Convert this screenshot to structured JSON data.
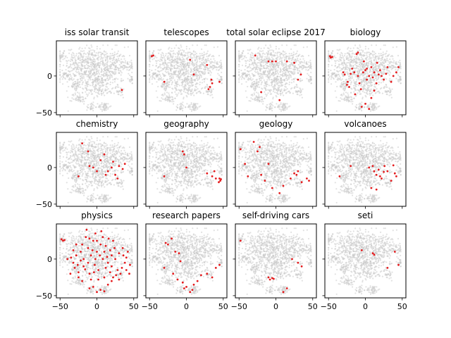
{
  "chart_data": {
    "type": "scatter",
    "layout": "3x4 grid of small multiples, shared x and y axes",
    "background_points_color": "#c8c8c8",
    "highlight_color": "#e41a1c",
    "xlim": [
      -55,
      55
    ],
    "ylim": [
      -53,
      48
    ],
    "xticks": [
      -50,
      0,
      50
    ],
    "yticks": [
      -50,
      0
    ],
    "grid": false,
    "background_clusters": [
      {
        "cx": -5,
        "cy": 8,
        "sx": 22,
        "sy": 16,
        "n": 520
      },
      {
        "cx": -18,
        "cy": 22,
        "sx": 10,
        "sy": 8,
        "n": 110
      },
      {
        "cx": 20,
        "cy": 12,
        "sx": 12,
        "sy": 10,
        "n": 130
      },
      {
        "cx": -47,
        "cy": 27,
        "sx": 3,
        "sy": 3,
        "n": 30
      },
      {
        "cx": -42,
        "cy": 0,
        "sx": 3,
        "sy": 3,
        "n": 25
      },
      {
        "cx": -30,
        "cy": -12,
        "sx": 4,
        "sy": 4,
        "n": 35
      },
      {
        "cx": -24,
        "cy": -30,
        "sx": 5,
        "sy": 4,
        "n": 45
      },
      {
        "cx": 10,
        "cy": -42,
        "sx": 4,
        "sy": 3,
        "n": 45
      },
      {
        "cx": -8,
        "cy": -42,
        "sx": 3,
        "sy": 3,
        "n": 25
      },
      {
        "cx": 30,
        "cy": -22,
        "sx": 4,
        "sy": 4,
        "n": 30
      },
      {
        "cx": 42,
        "cy": 15,
        "sx": 4,
        "sy": 4,
        "n": 30
      },
      {
        "cx": 46,
        "cy": -5,
        "sx": 3,
        "sy": 3,
        "n": 20
      },
      {
        "cx": 2,
        "cy": -14,
        "sx": 10,
        "sy": 8,
        "n": 110
      }
    ],
    "panels": [
      {
        "title": "iss solar transit",
        "points": [
          [
            34,
            -19
          ]
        ]
      },
      {
        "title": "telescopes",
        "points": [
          [
            -47,
            27
          ],
          [
            -45,
            28
          ],
          [
            -30,
            -8
          ],
          [
            5,
            22
          ],
          [
            10,
            2
          ],
          [
            28,
            15
          ],
          [
            30,
            -18
          ],
          [
            32,
            -15
          ],
          [
            35,
            -10
          ],
          [
            45,
            -8
          ],
          [
            34,
            -5
          ]
        ]
      },
      {
        "title": "total solar eclipse 2017",
        "points": [
          [
            -28,
            28
          ],
          [
            -10,
            20
          ],
          [
            -5,
            20
          ],
          [
            0,
            20
          ],
          [
            25,
            18
          ],
          [
            30,
            -5
          ],
          [
            -20,
            -22
          ],
          [
            5,
            -33
          ],
          [
            34,
            2
          ],
          [
            15,
            20
          ]
        ]
      },
      {
        "title": "biology",
        "points": [
          [
            -48,
            27
          ],
          [
            -47,
            25
          ],
          [
            -45,
            26
          ],
          [
            -30,
            5
          ],
          [
            -28,
            2
          ],
          [
            -25,
            -12
          ],
          [
            -24,
            -8
          ],
          [
            -22,
            -15
          ],
          [
            -20,
            3
          ],
          [
            -18,
            10
          ],
          [
            -15,
            5
          ],
          [
            -12,
            30
          ],
          [
            -10,
            32
          ],
          [
            -8,
            -10
          ],
          [
            -6,
            -18
          ],
          [
            -3,
            5
          ],
          [
            0,
            8
          ],
          [
            2,
            -5
          ],
          [
            5,
            0
          ],
          [
            8,
            12
          ],
          [
            10,
            -2
          ],
          [
            12,
            5
          ],
          [
            15,
            -10
          ],
          [
            18,
            2
          ],
          [
            20,
            8
          ],
          [
            22,
            0
          ],
          [
            25,
            -5
          ],
          [
            28,
            3
          ],
          [
            30,
            12
          ],
          [
            35,
            -8
          ],
          [
            38,
            0
          ],
          [
            42,
            5
          ],
          [
            45,
            12
          ],
          [
            -5,
            -42
          ],
          [
            0,
            -38
          ],
          [
            5,
            -45
          ],
          [
            -2,
            20
          ],
          [
            16,
            18
          ],
          [
            -14,
            -25
          ],
          [
            8,
            -30
          ],
          [
            2,
            10
          ],
          [
            -10,
            0
          ],
          [
            12,
            -20
          ]
        ]
      },
      {
        "title": "chemistry",
        "points": [
          [
            -25,
            -12
          ],
          [
            -20,
            33
          ],
          [
            -12,
            22
          ],
          [
            -10,
            2
          ],
          [
            -5,
            0
          ],
          [
            0,
            -5
          ],
          [
            5,
            10
          ],
          [
            10,
            18
          ],
          [
            15,
            -5
          ],
          [
            20,
            0
          ],
          [
            25,
            -10
          ],
          [
            30,
            2
          ],
          [
            35,
            -2
          ],
          [
            38,
            5
          ],
          [
            28,
            -15
          ],
          [
            12,
            -10
          ],
          [
            22,
            8
          ]
        ]
      },
      {
        "title": "geography",
        "points": [
          [
            -30,
            -12
          ],
          [
            -5,
            22
          ],
          [
            -3,
            18
          ],
          [
            0,
            0
          ],
          [
            28,
            -8
          ],
          [
            35,
            -12
          ],
          [
            40,
            -15
          ],
          [
            45,
            -15
          ],
          [
            46,
            -18
          ],
          [
            47,
            -16
          ],
          [
            44,
            -20
          ],
          [
            38,
            -5
          ]
        ]
      },
      {
        "title": "geology",
        "points": [
          [
            -48,
            25
          ],
          [
            -42,
            5
          ],
          [
            -38,
            -12
          ],
          [
            -30,
            35
          ],
          [
            -25,
            22
          ],
          [
            -22,
            28
          ],
          [
            -20,
            -10
          ],
          [
            -15,
            -18
          ],
          [
            -10,
            5
          ],
          [
            -5,
            -28
          ],
          [
            5,
            -35
          ],
          [
            10,
            -25
          ],
          [
            20,
            -15
          ],
          [
            25,
            -8
          ],
          [
            28,
            -10
          ],
          [
            30,
            -5
          ],
          [
            35,
            -20
          ],
          [
            42,
            -15
          ],
          [
            45,
            -18
          ]
        ]
      },
      {
        "title": "volcanoes",
        "points": [
          [
            -35,
            -12
          ],
          [
            -20,
            2
          ],
          [
            5,
            0
          ],
          [
            10,
            2
          ],
          [
            12,
            -5
          ],
          [
            15,
            -10
          ],
          [
            18,
            -3
          ],
          [
            20,
            -12
          ],
          [
            22,
            -15
          ],
          [
            25,
            -6
          ],
          [
            30,
            -5
          ],
          [
            35,
            -18
          ],
          [
            40,
            -8
          ],
          [
            42,
            -12
          ],
          [
            8,
            -28
          ],
          [
            15,
            -30
          ],
          [
            38,
            3
          ],
          [
            26,
            2
          ]
        ]
      },
      {
        "title": "physics",
        "points": [
          [
            -48,
            27
          ],
          [
            -46,
            25
          ],
          [
            -44,
            26
          ],
          [
            -40,
            0
          ],
          [
            -35,
            2
          ],
          [
            -32,
            -5
          ],
          [
            -30,
            -12
          ],
          [
            -28,
            5
          ],
          [
            -25,
            -18
          ],
          [
            -22,
            10
          ],
          [
            -20,
            20
          ],
          [
            -18,
            -10
          ],
          [
            -15,
            30
          ],
          [
            -12,
            15
          ],
          [
            -10,
            -20
          ],
          [
            -8,
            5
          ],
          [
            -5,
            25
          ],
          [
            -3,
            -8
          ],
          [
            0,
            10
          ],
          [
            2,
            -15
          ],
          [
            5,
            20
          ],
          [
            8,
            0
          ],
          [
            10,
            -25
          ],
          [
            12,
            18
          ],
          [
            15,
            -5
          ],
          [
            18,
            12
          ],
          [
            20,
            -10
          ],
          [
            22,
            25
          ],
          [
            25,
            0
          ],
          [
            28,
            -15
          ],
          [
            30,
            8
          ],
          [
            32,
            -20
          ],
          [
            35,
            15
          ],
          [
            38,
            -5
          ],
          [
            40,
            2
          ],
          [
            42,
            10
          ],
          [
            45,
            -8
          ],
          [
            -10,
            -40
          ],
          [
            -5,
            -38
          ],
          [
            0,
            -45
          ],
          [
            5,
            -42
          ],
          [
            10,
            -44
          ],
          [
            -20,
            -30
          ],
          [
            -25,
            -25
          ],
          [
            15,
            -35
          ],
          [
            20,
            -30
          ],
          [
            -18,
            0
          ],
          [
            -12,
            -5
          ],
          [
            -6,
            12
          ],
          [
            4,
            5
          ],
          [
            14,
            3
          ],
          [
            24,
            15
          ],
          [
            34,
            -12
          ],
          [
            -2,
            35
          ],
          [
            8,
            30
          ],
          [
            -28,
            20
          ],
          [
            -36,
            -20
          ],
          [
            44,
            -20
          ],
          [
            -14,
            40
          ],
          [
            6,
            38
          ],
          [
            16,
            28
          ],
          [
            -22,
            -2
          ],
          [
            2,
            -28
          ],
          [
            12,
            -12
          ],
          [
            26,
            -22
          ],
          [
            -4,
            -18
          ],
          [
            18,
            -18
          ],
          [
            -32,
            12
          ],
          [
            30,
            -28
          ],
          [
            0,
            25
          ],
          [
            -8,
            -28
          ],
          [
            10,
            10
          ],
          [
            20,
            5
          ],
          [
            -16,
            -14
          ],
          [
            36,
            5
          ],
          [
            -26,
            -8
          ],
          [
            40,
            -15
          ],
          [
            -2,
            0
          ],
          [
            22,
            -25
          ],
          [
            -10,
            28
          ]
        ]
      },
      {
        "title": "research papers",
        "points": [
          [
            -28,
            22
          ],
          [
            -25,
            20
          ],
          [
            -10,
            8
          ],
          [
            -8,
            -3
          ],
          [
            -30,
            -12
          ],
          [
            -18,
            -20
          ],
          [
            -12,
            -28
          ],
          [
            -5,
            -32
          ],
          [
            0,
            -38
          ],
          [
            10,
            -35
          ],
          [
            8,
            -42
          ],
          [
            -3,
            -40
          ],
          [
            5,
            -45
          ],
          [
            15,
            -30
          ],
          [
            20,
            -22
          ],
          [
            28,
            -20
          ],
          [
            35,
            -25
          ],
          [
            40,
            -12
          ],
          [
            45,
            -8
          ],
          [
            -20,
            28
          ],
          [
            -15,
            10
          ]
        ]
      },
      {
        "title": "self-driving cars",
        "points": [
          [
            -48,
            25
          ],
          [
            -10,
            -25
          ],
          [
            -8,
            -28
          ],
          [
            -5,
            -26
          ],
          [
            -3,
            -27
          ],
          [
            10,
            -45
          ],
          [
            15,
            -40
          ],
          [
            22,
            0
          ],
          [
            35,
            -10
          ],
          [
            30,
            -5
          ]
        ]
      },
      {
        "title": "seti",
        "points": [
          [
            -5,
            12
          ],
          [
            10,
            8
          ],
          [
            12,
            6
          ],
          [
            30,
            -12
          ],
          [
            40,
            10
          ],
          [
            45,
            -8
          ]
        ]
      }
    ]
  }
}
